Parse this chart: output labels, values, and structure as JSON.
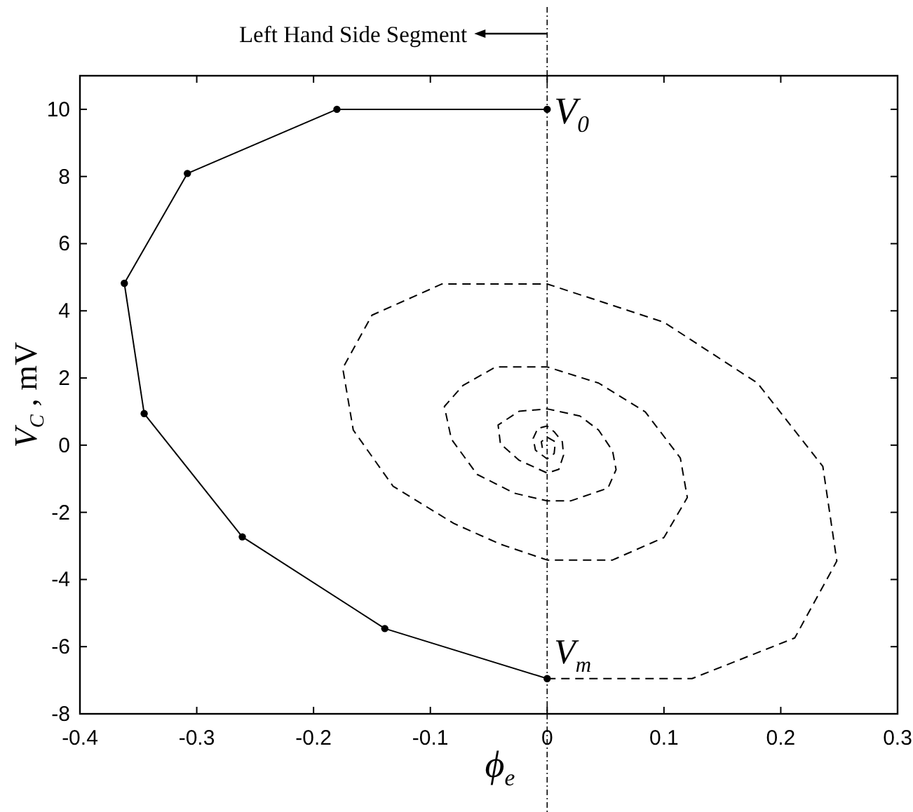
{
  "chart_data": {
    "type": "line",
    "xlabel": "ϕ$_{e}$",
    "ylabel": "V$_{C}$ , mV",
    "xlim": [
      -0.4,
      0.3
    ],
    "xticks": [
      -0.4,
      -0.3,
      -0.2,
      -0.1,
      0,
      0.1,
      0.2,
      0.3
    ],
    "ylim": [
      -8,
      11
    ],
    "yticks": [
      -8,
      -6,
      -4,
      -2,
      0,
      2,
      4,
      6,
      8,
      10
    ],
    "grid": false,
    "series": [
      {
        "color": "#000000",
        "marker": "circle",
        "line_style": "solid",
        "x": [
          0,
          -0.18,
          -0.308,
          -0.362,
          -0.345,
          -0.261,
          -0.139,
          0
        ],
        "values": [
          10,
          10,
          8.09,
          4.82,
          0.94,
          -2.73,
          -5.46,
          -6.95
        ]
      },
      {
        "color": "#000000",
        "marker": "none",
        "line_style": "dashed",
        "x": [
          0,
          0.124,
          0.212,
          0.248,
          0.236,
          0.18,
          0.1,
          0,
          -0.09,
          -0.15,
          -0.175,
          -0.166,
          -0.132,
          -0.08,
          -0.04,
          0,
          0.056,
          0.1,
          0.12,
          0.114,
          0.084,
          0.044,
          0,
          -0.044,
          -0.072,
          -0.088,
          -0.082,
          -0.06,
          -0.028,
          0,
          0.02,
          0.052,
          0.059,
          0.056,
          0.044,
          0.028,
          0,
          -0.024,
          -0.042,
          -0.04,
          -0.024,
          0,
          0.01,
          0.014,
          0.013,
          0.006,
          0,
          -0.008,
          -0.012,
          -0.01,
          0,
          0.006,
          0.007,
          0,
          -0.005,
          -0.004,
          0
        ],
        "values": [
          -6.95,
          -6.95,
          -5.74,
          -3.45,
          -0.63,
          1.85,
          3.66,
          4.8,
          4.8,
          3.87,
          2.29,
          0.45,
          -1.22,
          -2.33,
          -2.95,
          -3.42,
          -3.42,
          -2.75,
          -1.56,
          -0.38,
          0.99,
          1.85,
          2.33,
          2.33,
          1.78,
          1.15,
          0.18,
          -0.87,
          -1.43,
          -1.66,
          -1.66,
          -1.28,
          -0.73,
          -0.17,
          0.45,
          0.87,
          1.08,
          1.01,
          0.6,
          0.04,
          -0.45,
          -0.83,
          -0.72,
          -0.3,
          0.1,
          0.4,
          0.57,
          0.5,
          0.2,
          -0.15,
          -0.41,
          -0.25,
          0.1,
          0.24,
          0.1,
          -0.1,
          0
        ]
      }
    ],
    "ref_lines": [
      {
        "axis": "x",
        "value": 0,
        "label": "Left Hand Side Segment",
        "line_style": "dotted",
        "color": "#000000"
      }
    ],
    "annotations": [
      {
        "text": "V$_{0}$",
        "x": 0,
        "y": 10
      },
      {
        "text": "V$_{m}$",
        "x": 0,
        "y": -6.95
      }
    ]
  }
}
